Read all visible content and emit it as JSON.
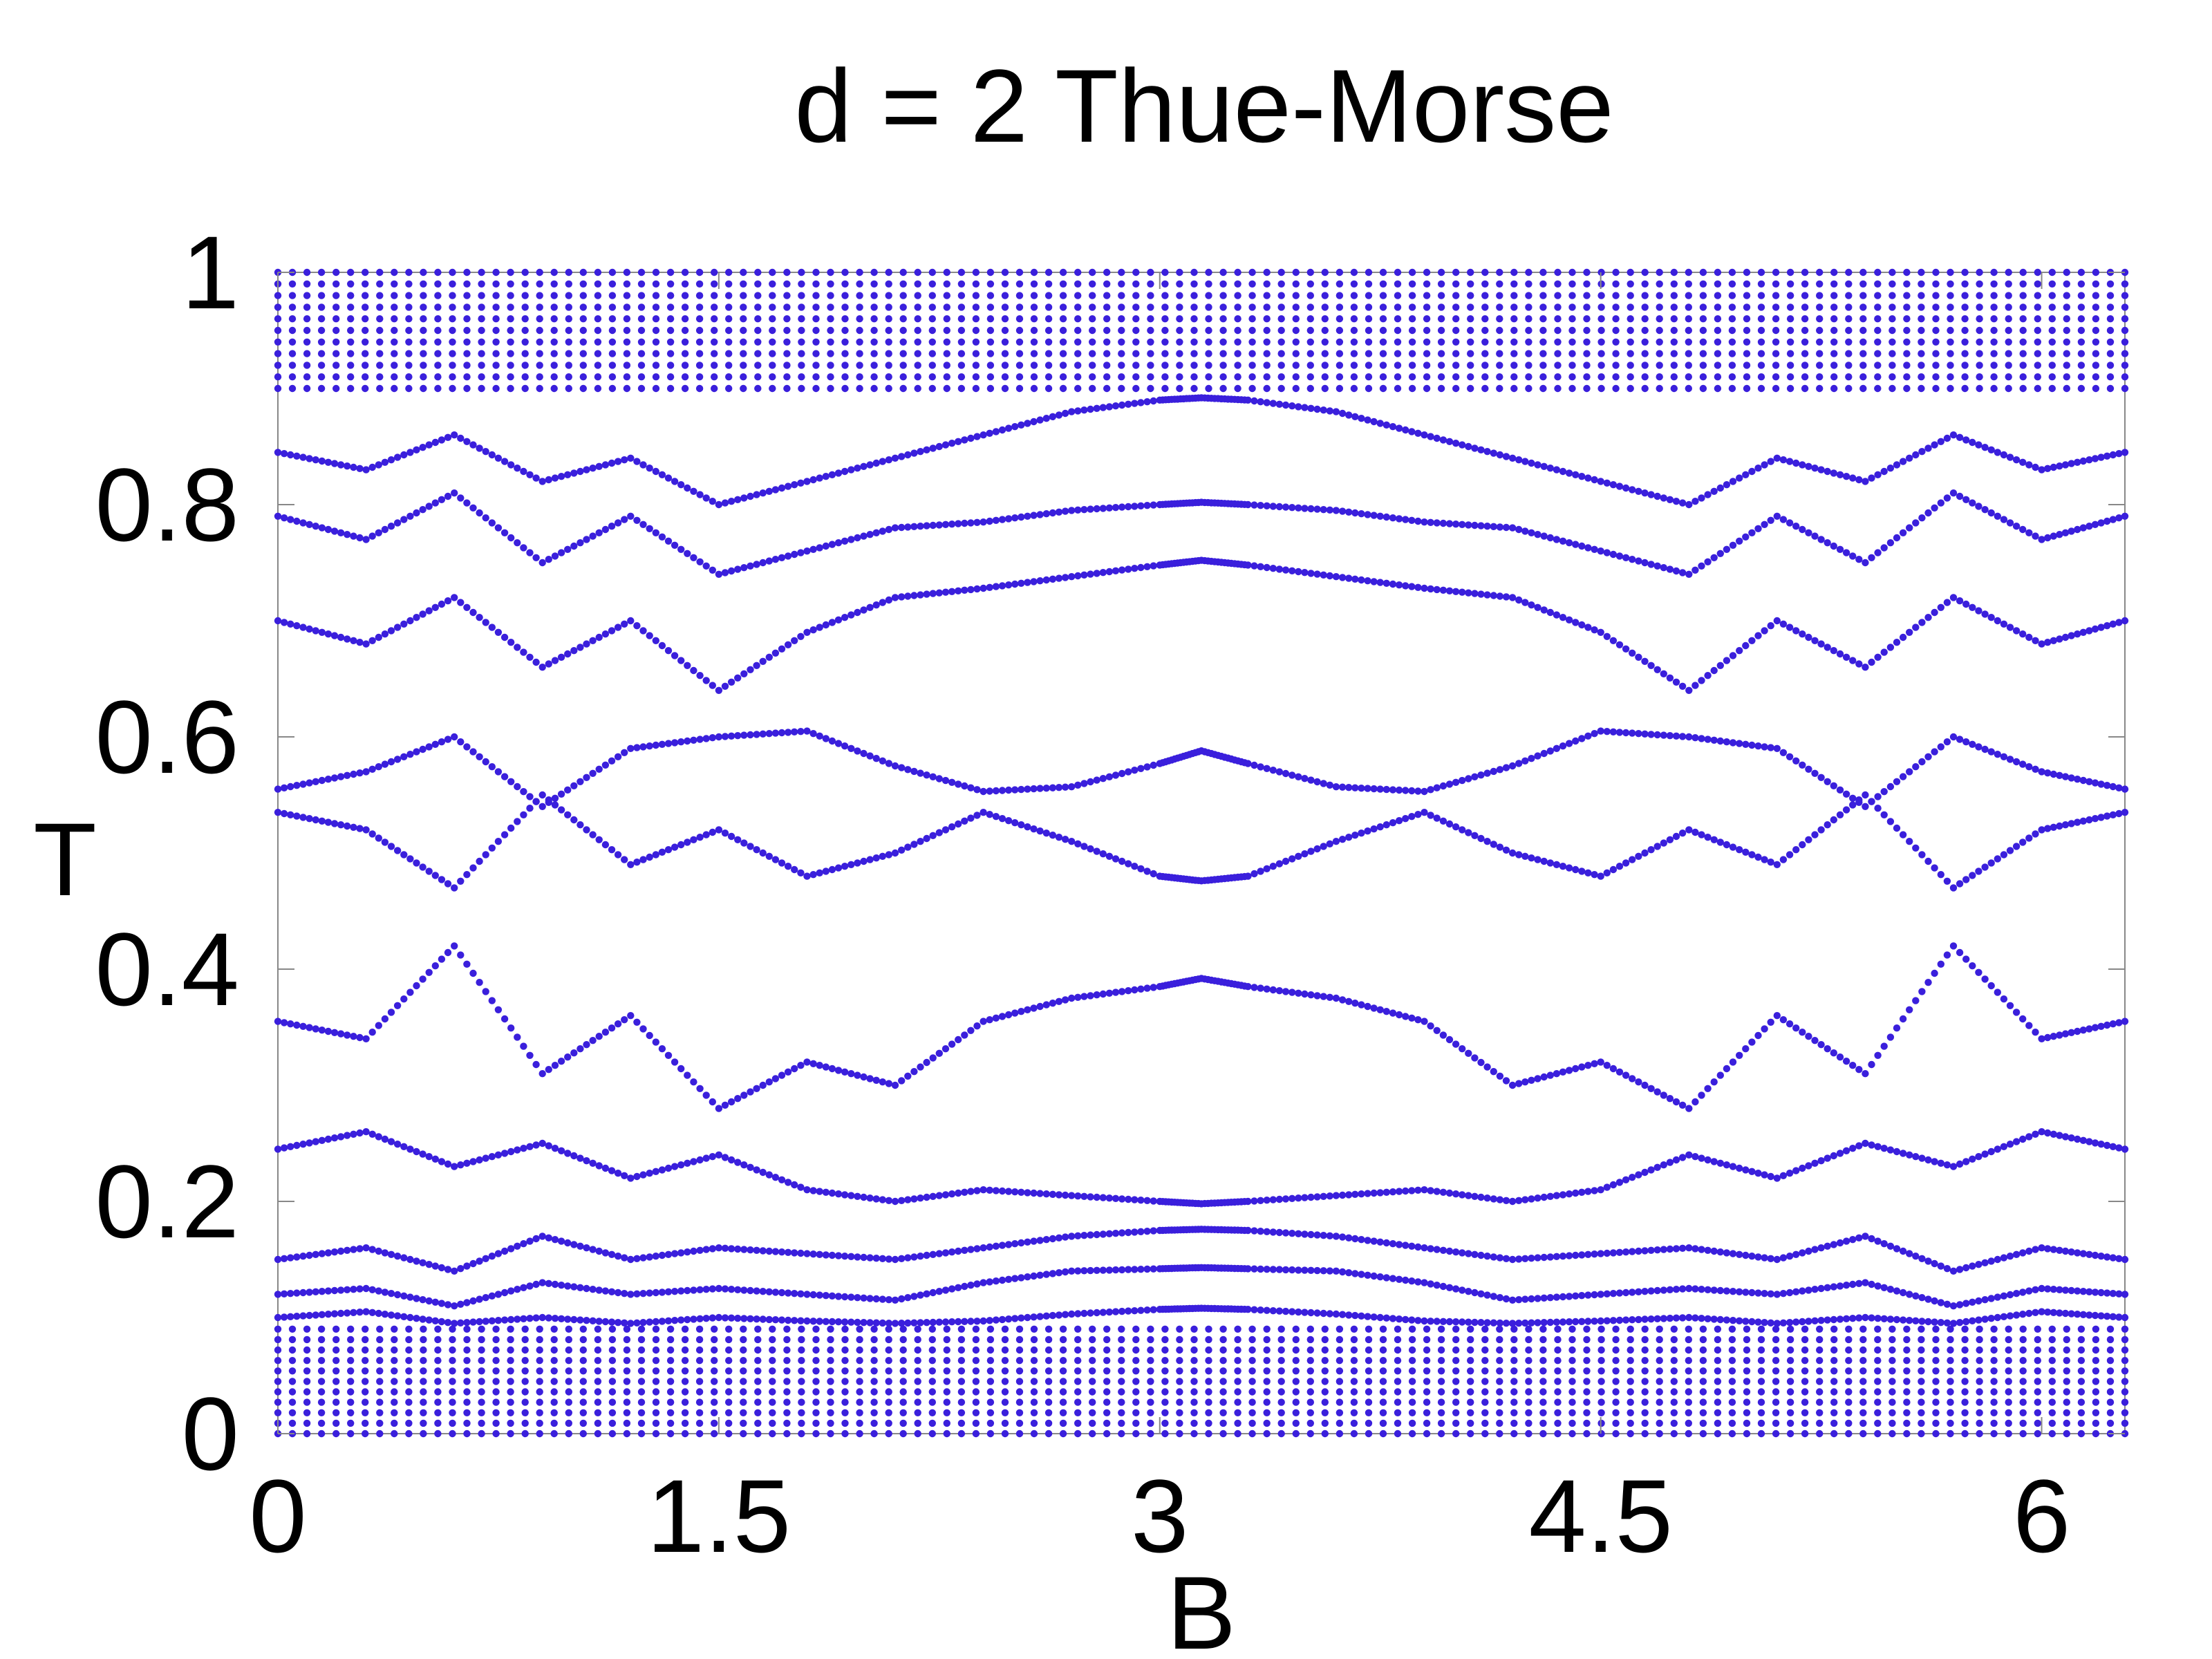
{
  "chart_data": {
    "type": "scatter",
    "title": "d = 2 Thue-Morse",
    "xlabel": "B",
    "ylabel": "T",
    "xlim": [
      0,
      6.2832
    ],
    "ylim": [
      0,
      1
    ],
    "xticks": [
      0,
      1.5,
      3,
      4.5,
      6
    ],
    "xtick_labels": [
      "0",
      "1.5",
      "3",
      "4.5",
      "6"
    ],
    "yticks": [
      0,
      0.2,
      0.4,
      0.6,
      0.8,
      1
    ],
    "ytick_labels": [
      "0",
      "0.2",
      "0.4",
      "0.6",
      "0.8",
      "1"
    ],
    "grid": false,
    "legend": "none",
    "marker_color": "#3a1fdc",
    "b_columns": 128,
    "dense_bands": [
      [
        0.0,
        0.09
      ],
      [
        0.9,
        1.0
      ]
    ],
    "series": [
      {
        "values": [
          [
            0.0,
            0.355
          ],
          [
            0.3,
            0.34
          ],
          [
            0.6,
            0.42
          ],
          [
            0.9,
            0.31
          ],
          [
            1.2,
            0.36
          ],
          [
            1.5,
            0.28
          ],
          [
            1.8,
            0.32
          ],
          [
            2.1,
            0.3
          ],
          [
            2.4,
            0.355
          ],
          [
            2.7,
            0.375
          ],
          [
            3.0,
            0.385
          ],
          [
            3.1416,
            0.392
          ],
          [
            3.3,
            0.385
          ],
          [
            3.6,
            0.375
          ],
          [
            3.9,
            0.355
          ],
          [
            4.2,
            0.3
          ],
          [
            4.5,
            0.32
          ],
          [
            4.8,
            0.28
          ],
          [
            5.1,
            0.36
          ],
          [
            5.4,
            0.31
          ],
          [
            5.7,
            0.42
          ],
          [
            6.0,
            0.34
          ],
          [
            6.2832,
            0.355
          ],
          [
            0.0,
            0.535
          ],
          [
            0.3,
            0.52
          ],
          [
            0.6,
            0.47
          ],
          [
            0.9,
            0.55
          ],
          [
            1.2,
            0.49
          ],
          [
            1.5,
            0.52
          ],
          [
            1.8,
            0.48
          ],
          [
            2.1,
            0.5
          ],
          [
            2.4,
            0.535
          ],
          [
            2.7,
            0.51
          ],
          [
            3.0,
            0.48
          ],
          [
            3.1416,
            0.476
          ],
          [
            3.3,
            0.48
          ],
          [
            3.6,
            0.51
          ],
          [
            3.9,
            0.535
          ],
          [
            4.2,
            0.5
          ],
          [
            4.5,
            0.48
          ],
          [
            4.8,
            0.52
          ],
          [
            5.1,
            0.49
          ],
          [
            5.4,
            0.55
          ],
          [
            5.7,
            0.47
          ],
          [
            6.0,
            0.52
          ],
          [
            6.2832,
            0.535
          ],
          [
            0.0,
            0.555
          ],
          [
            0.3,
            0.57
          ],
          [
            0.6,
            0.6
          ],
          [
            0.9,
            0.54
          ],
          [
            1.2,
            0.59
          ],
          [
            1.5,
            0.6
          ],
          [
            1.8,
            0.605
          ],
          [
            2.1,
            0.575
          ],
          [
            2.4,
            0.553
          ],
          [
            2.7,
            0.557
          ],
          [
            3.0,
            0.577
          ],
          [
            3.1416,
            0.588
          ],
          [
            3.3,
            0.577
          ],
          [
            3.6,
            0.557
          ],
          [
            3.9,
            0.553
          ],
          [
            4.2,
            0.575
          ],
          [
            4.5,
            0.605
          ],
          [
            4.8,
            0.6
          ],
          [
            5.1,
            0.59
          ],
          [
            5.4,
            0.54
          ],
          [
            5.7,
            0.6
          ],
          [
            6.0,
            0.57
          ],
          [
            6.2832,
            0.555
          ],
          [
            0.0,
            0.7
          ],
          [
            0.3,
            0.68
          ],
          [
            0.6,
            0.72
          ],
          [
            0.9,
            0.66
          ],
          [
            1.2,
            0.7
          ],
          [
            1.5,
            0.64
          ],
          [
            1.8,
            0.69
          ],
          [
            2.1,
            0.72
          ],
          [
            2.4,
            0.728
          ],
          [
            2.7,
            0.738
          ],
          [
            3.0,
            0.748
          ],
          [
            3.1416,
            0.752
          ],
          [
            3.3,
            0.748
          ],
          [
            3.6,
            0.738
          ],
          [
            3.9,
            0.728
          ],
          [
            4.2,
            0.72
          ],
          [
            4.5,
            0.69
          ],
          [
            4.8,
            0.64
          ],
          [
            5.1,
            0.7
          ],
          [
            5.4,
            0.66
          ],
          [
            5.7,
            0.72
          ],
          [
            6.0,
            0.68
          ],
          [
            6.2832,
            0.7
          ],
          [
            0.0,
            0.79
          ],
          [
            0.3,
            0.77
          ],
          [
            0.6,
            0.81
          ],
          [
            0.9,
            0.75
          ],
          [
            1.2,
            0.79
          ],
          [
            1.5,
            0.74
          ],
          [
            1.8,
            0.76
          ],
          [
            2.1,
            0.78
          ],
          [
            2.4,
            0.785
          ],
          [
            2.7,
            0.795
          ],
          [
            3.0,
            0.8
          ],
          [
            3.1416,
            0.802
          ],
          [
            3.3,
            0.8
          ],
          [
            3.6,
            0.795
          ],
          [
            3.9,
            0.785
          ],
          [
            4.2,
            0.78
          ],
          [
            4.5,
            0.76
          ],
          [
            4.8,
            0.74
          ],
          [
            5.1,
            0.79
          ],
          [
            5.4,
            0.75
          ],
          [
            5.7,
            0.81
          ],
          [
            6.0,
            0.77
          ],
          [
            6.2832,
            0.79
          ],
          [
            0.0,
            0.845
          ],
          [
            0.3,
            0.83
          ],
          [
            0.6,
            0.86
          ],
          [
            0.9,
            0.82
          ],
          [
            1.2,
            0.84
          ],
          [
            1.5,
            0.8
          ],
          [
            1.8,
            0.82
          ],
          [
            2.1,
            0.84
          ],
          [
            2.4,
            0.86
          ],
          [
            2.7,
            0.88
          ],
          [
            3.0,
            0.89
          ],
          [
            3.1416,
            0.892
          ],
          [
            3.3,
            0.89
          ],
          [
            3.6,
            0.88
          ],
          [
            3.9,
            0.86
          ],
          [
            4.2,
            0.84
          ],
          [
            4.5,
            0.82
          ],
          [
            4.8,
            0.8
          ],
          [
            5.1,
            0.84
          ],
          [
            5.4,
            0.82
          ],
          [
            5.7,
            0.86
          ],
          [
            6.0,
            0.83
          ],
          [
            6.2832,
            0.845
          ],
          [
            0.0,
            0.245
          ],
          [
            0.3,
            0.26
          ],
          [
            0.6,
            0.23
          ],
          [
            0.9,
            0.25
          ],
          [
            1.2,
            0.22
          ],
          [
            1.5,
            0.24
          ],
          [
            1.8,
            0.21
          ],
          [
            2.1,
            0.2
          ],
          [
            2.4,
            0.21
          ],
          [
            2.7,
            0.205
          ],
          [
            3.0,
            0.2
          ],
          [
            3.1416,
            0.198
          ],
          [
            3.3,
            0.2
          ],
          [
            3.6,
            0.205
          ],
          [
            3.9,
            0.21
          ],
          [
            4.2,
            0.2
          ],
          [
            4.5,
            0.21
          ],
          [
            4.8,
            0.24
          ],
          [
            5.1,
            0.22
          ],
          [
            5.4,
            0.25
          ],
          [
            5.7,
            0.23
          ],
          [
            6.0,
            0.26
          ],
          [
            6.2832,
            0.245
          ],
          [
            0.0,
            0.15
          ],
          [
            0.3,
            0.16
          ],
          [
            0.6,
            0.14
          ],
          [
            0.9,
            0.17
          ],
          [
            1.2,
            0.15
          ],
          [
            1.5,
            0.16
          ],
          [
            1.8,
            0.155
          ],
          [
            2.1,
            0.15
          ],
          [
            2.4,
            0.16
          ],
          [
            2.7,
            0.17
          ],
          [
            3.0,
            0.175
          ],
          [
            3.1416,
            0.176
          ],
          [
            3.3,
            0.175
          ],
          [
            3.6,
            0.17
          ],
          [
            3.9,
            0.16
          ],
          [
            4.2,
            0.15
          ],
          [
            4.5,
            0.155
          ],
          [
            4.8,
            0.16
          ],
          [
            5.1,
            0.15
          ],
          [
            5.4,
            0.17
          ],
          [
            5.7,
            0.14
          ],
          [
            6.0,
            0.16
          ],
          [
            6.2832,
            0.15
          ],
          [
            0.0,
            0.12
          ],
          [
            0.3,
            0.125
          ],
          [
            0.6,
            0.11
          ],
          [
            0.9,
            0.13
          ],
          [
            1.2,
            0.12
          ],
          [
            1.5,
            0.125
          ],
          [
            1.8,
            0.12
          ],
          [
            2.1,
            0.115
          ],
          [
            2.4,
            0.13
          ],
          [
            2.7,
            0.14
          ],
          [
            3.0,
            0.142
          ],
          [
            3.1416,
            0.143
          ],
          [
            3.3,
            0.142
          ],
          [
            3.6,
            0.14
          ],
          [
            3.9,
            0.13
          ],
          [
            4.2,
            0.115
          ],
          [
            4.5,
            0.12
          ],
          [
            4.8,
            0.125
          ],
          [
            5.1,
            0.12
          ],
          [
            5.4,
            0.13
          ],
          [
            5.7,
            0.11
          ],
          [
            6.0,
            0.125
          ],
          [
            6.2832,
            0.12
          ],
          [
            0.0,
            0.1
          ],
          [
            0.3,
            0.105
          ],
          [
            0.6,
            0.095
          ],
          [
            0.9,
            0.1
          ],
          [
            1.2,
            0.095
          ],
          [
            1.5,
            0.1
          ],
          [
            1.8,
            0.097
          ],
          [
            2.1,
            0.095
          ],
          [
            2.4,
            0.097
          ],
          [
            2.7,
            0.103
          ],
          [
            3.0,
            0.107
          ],
          [
            3.1416,
            0.108
          ],
          [
            3.3,
            0.107
          ],
          [
            3.6,
            0.103
          ],
          [
            3.9,
            0.097
          ],
          [
            4.2,
            0.095
          ],
          [
            4.5,
            0.097
          ],
          [
            4.8,
            0.1
          ],
          [
            5.1,
            0.095
          ],
          [
            5.4,
            0.1
          ],
          [
            5.7,
            0.095
          ],
          [
            6.0,
            0.105
          ],
          [
            6.2832,
            0.1
          ]
        ]
      }
    ]
  }
}
